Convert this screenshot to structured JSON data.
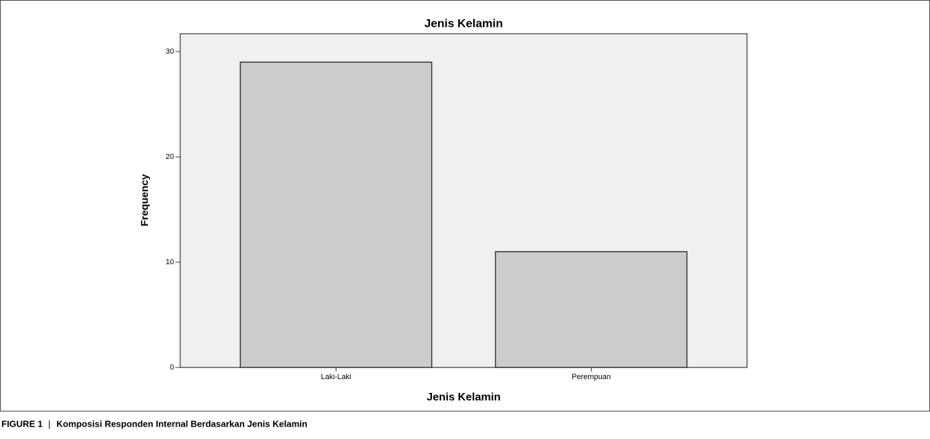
{
  "chart_data": {
    "type": "bar",
    "title": "Jenis Kelamin",
    "x_label": "Jenis Kelamin",
    "y_label": "Frequency",
    "categories": [
      "Laki-Laki",
      "Perempuan"
    ],
    "values": [
      29,
      11
    ],
    "color": "#cccccc",
    "ylim": [
      0,
      31.7
    ],
    "yticks": [
      0,
      10,
      20,
      30
    ],
    "grid": false
  },
  "caption": {
    "label": "FIGURE 1",
    "separator": "|",
    "text": "Komposisi Responden Internal Berdasarkan Jenis Kelamin"
  }
}
